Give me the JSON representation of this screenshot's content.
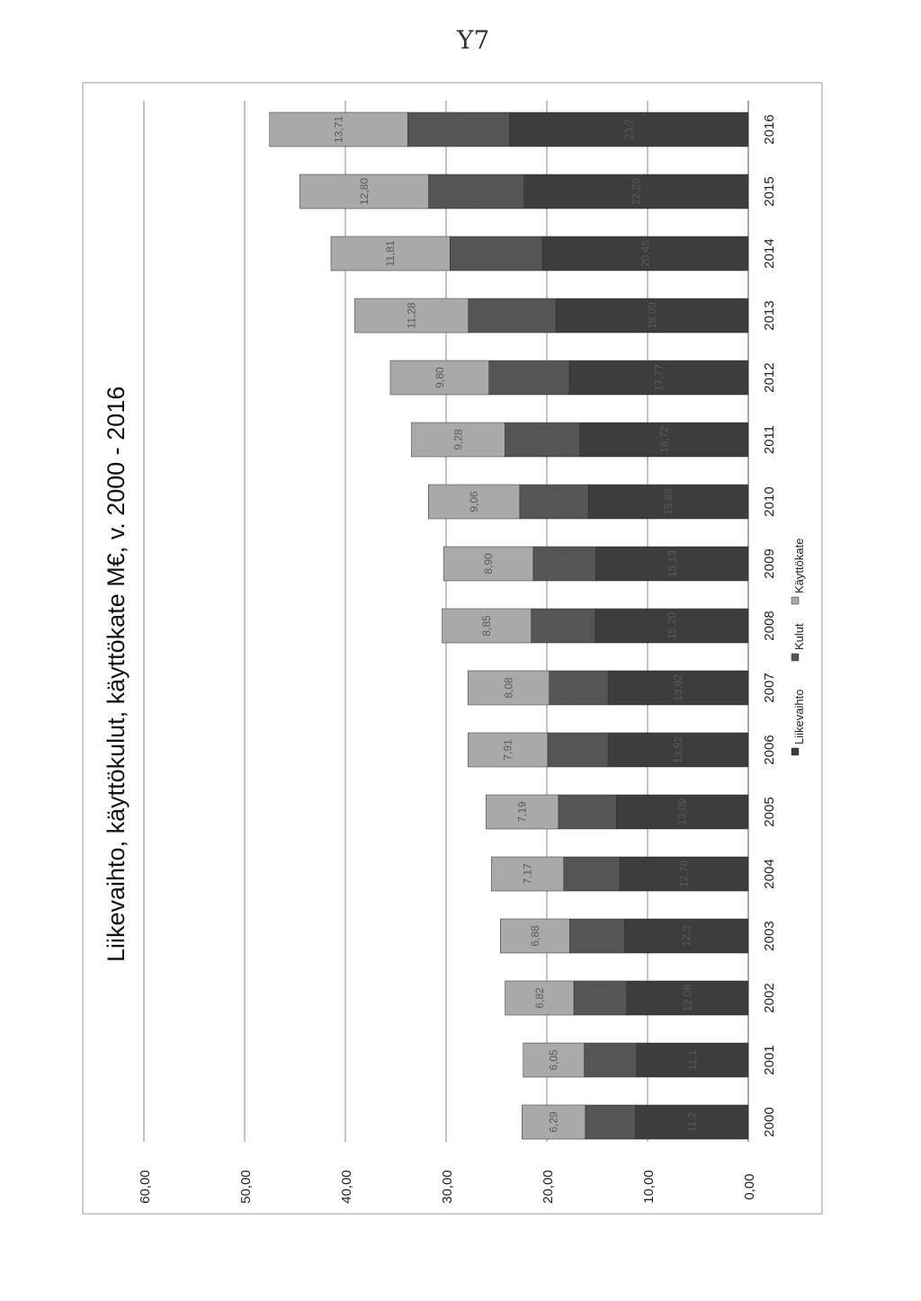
{
  "page_number": "Y7",
  "chart_data": {
    "type": "bar",
    "orientation": "stacked, rotated 90° on the page",
    "title": "Liikevaihto, käyttökulut, käyttökate M€, v. 2000 - 2016",
    "categories": [
      "2000",
      "2001",
      "2002",
      "2003",
      "2004",
      "2005",
      "2006",
      "2007",
      "2008",
      "2009",
      "2010",
      "2011",
      "2012",
      "2013",
      "2014",
      "2015",
      "2016"
    ],
    "series": [
      {
        "name": "Liikevaihto",
        "color": "#3d3d3d",
        "values": [
          11.2,
          11.1,
          12.08,
          12.3,
          12.76,
          13.09,
          13.92,
          13.92,
          15.2,
          15.13,
          15.88,
          16.72,
          17.77,
          19.09,
          20.45,
          22.26,
          23.7
        ],
        "labels": [
          "11,2",
          "11,1",
          "12,08",
          "12,3",
          "12,76",
          "13,09",
          "13,92",
          "13,92",
          "15,20",
          "15,13",
          "15,88",
          "16,72",
          "17,77",
          "19,09",
          "20,45",
          "22,26",
          "23,7"
        ]
      },
      {
        "name": "Kulut",
        "color": "#555555",
        "values": [
          4.98,
          5.19,
          5.24,
          5.44,
          5.57,
          5.76,
          6.0,
          5.84,
          6.35,
          6.22,
          6.82,
          7.44,
          7.97,
          8.7,
          9.17,
          9.48,
          10.11
        ],
        "labels": [
          "4,98",
          "5,19",
          "5,24",
          "5,44",
          "5,57",
          "5,76",
          "6,00",
          "5,84",
          "6,35",
          "6,22",
          "6,82",
          "7,44",
          "7,97",
          "8,70",
          "9,17",
          "9,48",
          "10,11"
        ]
      },
      {
        "name": "Käyttökate",
        "color": "#a9a9a9",
        "values": [
          6.29,
          6.05,
          6.82,
          6.88,
          7.17,
          7.19,
          7.91,
          8.08,
          8.85,
          8.9,
          9.06,
          9.28,
          9.8,
          11.28,
          11.81,
          12.8,
          13.71
        ],
        "labels": [
          "6,29",
          "6,05",
          "6,82",
          "6,88",
          "7,17",
          "7,19",
          "7,91",
          "8,08",
          "8,85",
          "8,90",
          "9,06",
          "9,28",
          "9,80",
          "11,28",
          "11,81",
          "12,80",
          "13,71"
        ]
      }
    ],
    "y_ticks": [
      "0,00",
      "10,00",
      "20,00",
      "30,00",
      "40,00",
      "50,00",
      "60,00"
    ],
    "ylim": [
      0,
      60
    ],
    "grid": true,
    "legend_position": "bottom"
  }
}
